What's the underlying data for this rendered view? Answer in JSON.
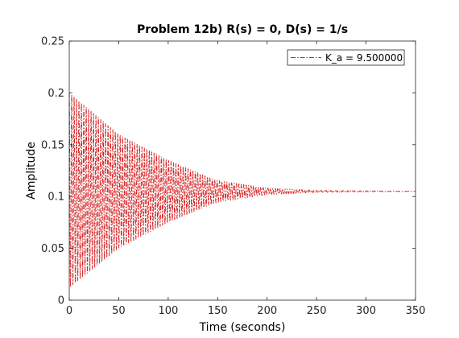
{
  "chart_data": {
    "type": "line",
    "title": "Problem 12b) R(s) = 0, D(s) = 1/s",
    "xlabel": "Time (seconds)",
    "ylabel": "Amplitude",
    "xlim": [
      0,
      350
    ],
    "ylim": [
      0,
      0.25
    ],
    "xticks": [
      0,
      50,
      100,
      150,
      200,
      250,
      300,
      350
    ],
    "yticks": [
      0,
      0.05,
      0.1,
      0.15,
      0.2,
      0.25
    ],
    "xtick_labels": [
      "0",
      "50",
      "100",
      "150",
      "200",
      "250",
      "300",
      "350"
    ],
    "ytick_labels": [
      "0",
      "0.05",
      "0.1",
      "0.15",
      "0.2",
      "0.25"
    ],
    "grid": false,
    "legend_position": "top-right",
    "series": [
      {
        "name": "K_a = 9.500000",
        "color": "#d62728",
        "line_style": "dash-dot",
        "response": {
          "steady_state": 0.105,
          "initial_value": 0.2,
          "initial_peak": 0.2,
          "initial_trough": 0.012,
          "envelope_at_t": [
            {
              "t": 0,
              "upper": 0.2,
              "lower": 0.012
            },
            {
              "t": 50,
              "upper": 0.16,
              "lower": 0.05
            },
            {
              "t": 100,
              "upper": 0.135,
              "lower": 0.075
            },
            {
              "t": 150,
              "upper": 0.115,
              "lower": 0.095
            },
            {
              "t": 200,
              "upper": 0.108,
              "lower": 0.102
            },
            {
              "t": 250,
              "upper": 0.106,
              "lower": 0.104
            },
            {
              "t": 350,
              "upper": 0.105,
              "lower": 0.105
            }
          ],
          "oscillation_period": 2.45,
          "t_end": 350
        }
      }
    ]
  }
}
